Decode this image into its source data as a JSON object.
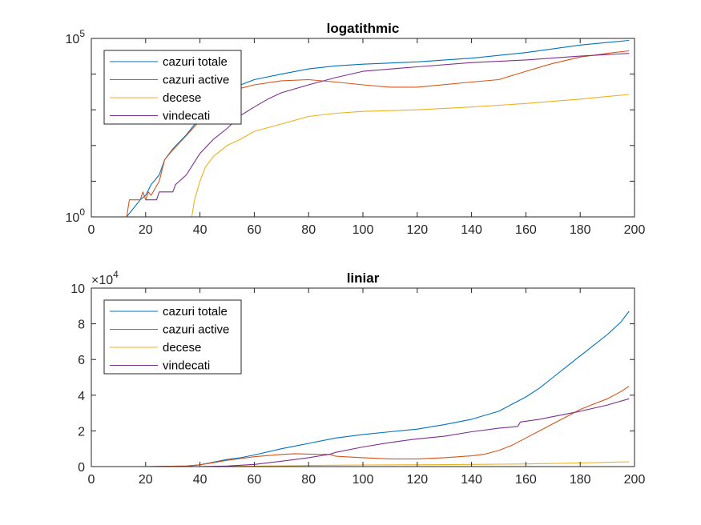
{
  "chart_data": [
    {
      "type": "line",
      "title": "logatithmic",
      "yscale": "log",
      "xlim": [
        0,
        200
      ],
      "ylim": [
        1,
        100000
      ],
      "xticks": [
        0,
        20,
        40,
        60,
        80,
        100,
        120,
        140,
        160,
        180,
        200
      ],
      "xtick_labels": [
        "0",
        "20",
        "40",
        "60",
        "80",
        "100",
        "120",
        "140",
        "160",
        "180",
        "200"
      ],
      "ytick_labels": [
        {
          "base": "10",
          "exp": "0"
        },
        {
          "base": "10",
          "exp": "5"
        }
      ],
      "grid": false,
      "legend_position": "top-left",
      "series": [
        {
          "name": "cazuri totale",
          "color": "#0072BD",
          "x": [
            13,
            18,
            20,
            22,
            25,
            27,
            30,
            35,
            40,
            45,
            50,
            55,
            60,
            70,
            80,
            90,
            100,
            120,
            140,
            160,
            180,
            198
          ],
          "y": [
            1,
            3,
            4,
            8,
            15,
            40,
            80,
            200,
            600,
            1500,
            3000,
            5000,
            7000,
            10000,
            14000,
            17000,
            19000,
            22000,
            28000,
            40000,
            65000,
            88000
          ]
        },
        {
          "name": "cazuri active",
          "color": "#D95319",
          "x": [
            13,
            14,
            18,
            19,
            20,
            21,
            22,
            25,
            27,
            30,
            35,
            40,
            45,
            50,
            55,
            60,
            70,
            80,
            90,
            100,
            110,
            120,
            140,
            150,
            160,
            170,
            180,
            190,
            198
          ],
          "y": [
            1,
            3,
            3,
            5,
            3,
            5,
            4,
            10,
            40,
            75,
            190,
            500,
            1300,
            2500,
            4000,
            5000,
            6500,
            7000,
            6000,
            5000,
            4300,
            4300,
            6000,
            7000,
            12000,
            20000,
            30000,
            38000,
            45000
          ]
        },
        {
          "name": "decese",
          "color": "#EDB120",
          "x": [
            37,
            38,
            40,
            42,
            45,
            50,
            55,
            60,
            70,
            80,
            90,
            100,
            120,
            140,
            160,
            180,
            198
          ],
          "y": [
            1,
            3,
            10,
            25,
            50,
            100,
            150,
            250,
            400,
            650,
            800,
            900,
            1000,
            1200,
            1500,
            2000,
            2700
          ]
        },
        {
          "name": "vindecati",
          "color": "#7E2F8E",
          "x": [
            20,
            24,
            25,
            30,
            31,
            35,
            40,
            45,
            50,
            55,
            60,
            65,
            70,
            80,
            90,
            100,
            120,
            140,
            160,
            180,
            198
          ],
          "y": [
            3,
            3,
            5,
            5,
            8,
            15,
            60,
            150,
            300,
            700,
            1200,
            2000,
            3000,
            5000,
            8000,
            12000,
            16000,
            21000,
            25000,
            32000,
            38000
          ]
        }
      ]
    },
    {
      "type": "line",
      "title": "liniar",
      "yscale": "linear",
      "xlim": [
        0,
        200
      ],
      "ylim": [
        0,
        100000
      ],
      "xticks": [
        0,
        20,
        40,
        60,
        80,
        100,
        120,
        140,
        160,
        180,
        200
      ],
      "xtick_labels": [
        "0",
        "20",
        "40",
        "60",
        "80",
        "100",
        "120",
        "140",
        "160",
        "180",
        "200"
      ],
      "yticks": [
        0,
        20000,
        40000,
        60000,
        80000,
        100000
      ],
      "ytick_labels": [
        "0",
        "2",
        "4",
        "6",
        "8",
        "10"
      ],
      "y_exponent": {
        "base": "×10",
        "exp": "4"
      },
      "grid": false,
      "legend_position": "top-left",
      "series": [
        {
          "name": "cazuri totale",
          "color": "#0072BD",
          "x": [
            0,
            20,
            35,
            40,
            45,
            50,
            55,
            60,
            70,
            80,
            90,
            100,
            110,
            120,
            130,
            140,
            150,
            155,
            160,
            165,
            170,
            175,
            180,
            185,
            190,
            195,
            198
          ],
          "y": [
            0,
            0,
            300,
            1000,
            2500,
            4000,
            5000,
            6500,
            10000,
            13000,
            16000,
            18000,
            19500,
            21000,
            23500,
            26500,
            31000,
            35000,
            39000,
            44000,
            50000,
            56000,
            62000,
            68000,
            74000,
            81000,
            87000
          ]
        },
        {
          "name": "cazuri active",
          "color": "#D95319",
          "x": [
            0,
            20,
            35,
            40,
            45,
            50,
            55,
            60,
            70,
            75,
            80,
            88,
            90,
            100,
            110,
            120,
            130,
            140,
            145,
            150,
            155,
            160,
            165,
            170,
            175,
            180,
            185,
            190,
            195,
            198
          ],
          "y": [
            0,
            0,
            300,
            1000,
            2200,
            3500,
            4500,
            5500,
            6800,
            7200,
            7000,
            6800,
            5800,
            5000,
            4300,
            4300,
            5000,
            6000,
            7000,
            9000,
            12000,
            16000,
            20000,
            24000,
            28000,
            32000,
            35000,
            38000,
            42000,
            45000
          ]
        },
        {
          "name": "decese",
          "color": "#EDB120",
          "x": [
            0,
            40,
            50,
            60,
            70,
            80,
            100,
            120,
            140,
            160,
            180,
            198
          ],
          "y": [
            0,
            0,
            100,
            250,
            400,
            650,
            900,
            1000,
            1200,
            1500,
            2000,
            2700
          ]
        },
        {
          "name": "vindecati",
          "color": "#7E2F8E",
          "x": [
            0,
            40,
            50,
            60,
            70,
            80,
            88,
            90,
            100,
            110,
            120,
            130,
            140,
            150,
            157,
            158,
            165,
            170,
            180,
            190,
            198
          ],
          "y": [
            0,
            0,
            300,
            1200,
            3000,
            5000,
            7000,
            8000,
            11000,
            13500,
            15500,
            17000,
            19500,
            21500,
            22500,
            25000,
            26500,
            28000,
            31000,
            34500,
            38000
          ]
        }
      ]
    }
  ]
}
